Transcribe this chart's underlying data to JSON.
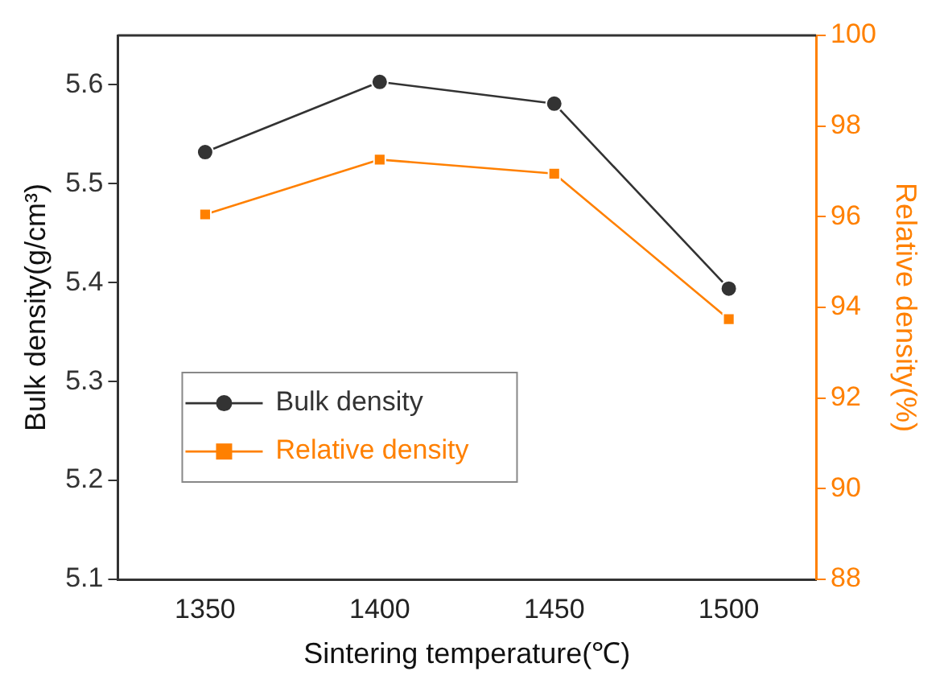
{
  "chart_data": {
    "type": "line",
    "xlabel": "Sintering temperature(℃)",
    "ylabel": "Bulk density(g/cm³)",
    "y2label": "Relative density(%)",
    "x": [
      1350,
      1400,
      1450,
      1500
    ],
    "xlim": [
      1325,
      1525
    ],
    "xticks": [
      1350,
      1400,
      1450,
      1500
    ],
    "ylim": [
      5.1,
      5.65
    ],
    "yticks": [
      5.1,
      5.2,
      5.3,
      5.4,
      5.5,
      5.6
    ],
    "y2lim": [
      88,
      100
    ],
    "y2ticks": [
      88,
      90,
      92,
      94,
      96,
      98,
      100
    ],
    "series": [
      {
        "name": "Bulk density",
        "color": "#333333",
        "marker": "circle",
        "values": [
          5.532,
          5.603,
          5.581,
          5.394
        ]
      },
      {
        "name": "Relative density",
        "color": "#ff8000",
        "marker": "square",
        "axis": "y2",
        "values": [
          96.05,
          97.26,
          96.95,
          93.74
        ]
      }
    ],
    "legend": "left",
    "grid": false,
    "line_style": "solid"
  }
}
